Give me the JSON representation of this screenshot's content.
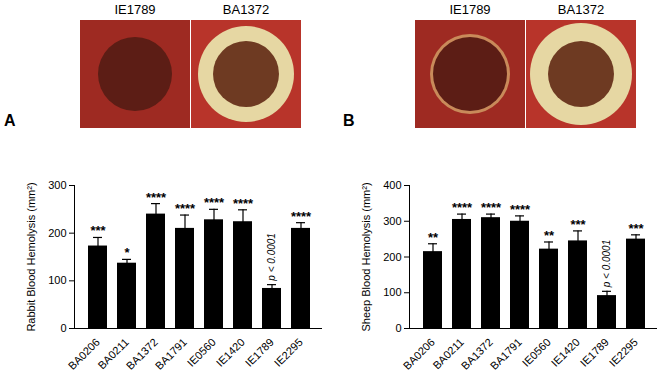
{
  "chart_data": [
    {
      "type": "bar",
      "panel": "A",
      "image_labels": [
        "IE1789",
        "BA1372"
      ],
      "y_label": "Rabbit Blood Hemolysis (mm²)",
      "categories": [
        "BA0206",
        "BA0211",
        "BA1372",
        "BA1791",
        "IE0560",
        "IE1420",
        "IE1789",
        "IE2295"
      ],
      "values": [
        173,
        137,
        240,
        210,
        228,
        224,
        84,
        210
      ],
      "error": [
        18,
        8,
        22,
        28,
        22,
        25,
        8,
        12
      ],
      "significance": [
        "***",
        "*",
        "****",
        "****",
        "****",
        "****",
        "p < 0.0001",
        "****"
      ],
      "color": "#000000",
      "ylim": [
        0,
        300
      ],
      "yticks": [
        0,
        100,
        200,
        300
      ],
      "grid": false
    },
    {
      "type": "bar",
      "panel": "B",
      "image_labels": [
        "IE1789",
        "BA1372"
      ],
      "y_label": "Sheep Blood Hemolysis (mm²)",
      "categories": [
        "BA0206",
        "BA0211",
        "BA1372",
        "BA1791",
        "IE0560",
        "IE1420",
        "IE1789",
        "IE2295"
      ],
      "values": [
        215,
        305,
        310,
        300,
        222,
        245,
        92,
        250
      ],
      "error": [
        22,
        15,
        10,
        15,
        20,
        28,
        12,
        12
      ],
      "significance": [
        "**",
        "****",
        "****",
        "****",
        "**",
        "***",
        "p < 0.0001",
        "***"
      ],
      "color": "#000000",
      "ylim": [
        0,
        400
      ],
      "yticks": [
        0,
        100,
        200,
        300,
        400
      ],
      "grid": false
    }
  ]
}
